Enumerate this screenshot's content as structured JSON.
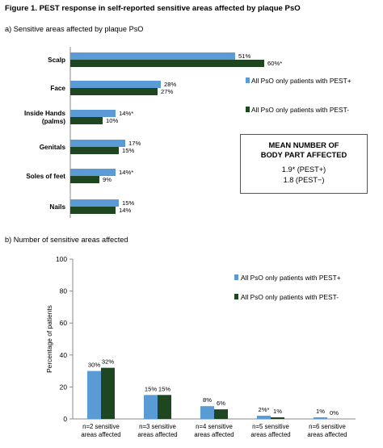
{
  "figure_title": "Figure 1. PEST response in self-reported sensitive areas affected by plaque PsO",
  "colors": {
    "pest_plus": "#5b9bd5",
    "pest_minus": "#1e4620"
  },
  "summary_box": {
    "title_line1": "MEAN NUMBER OF",
    "title_line2": "BODY PART AFFECTED",
    "line1": "1.9* (PEST+)",
    "line2": "1.8 (PEST−)"
  },
  "chart_data": [
    {
      "type": "bar",
      "orientation": "horizontal",
      "title": "a) Sensitive areas affected by plaque PsO",
      "categories": [
        "Scalp",
        "Face",
        "Inside Hands\n(palms)",
        "Genitals",
        "Soles of feet",
        "Nails"
      ],
      "series": [
        {
          "name": "All PsO only patients with PEST+",
          "values": [
            51,
            28,
            14,
            17,
            14,
            15
          ],
          "labels": [
            "51%",
            "28%",
            "14%*",
            "17%",
            "14%*",
            "15%"
          ]
        },
        {
          "name": "All PsO only patients with PEST-",
          "values": [
            60,
            27,
            10,
            15,
            9,
            14
          ],
          "labels": [
            "60%*",
            "27%",
            "10%",
            "15%",
            "9%",
            "14%"
          ]
        }
      ],
      "xlim": [
        0,
        65
      ],
      "legend": "right"
    },
    {
      "type": "bar",
      "title": "b) Number of sensitive areas affected",
      "categories": [
        "n=2 sensitive\nareas affected",
        "n=3 sensitive\nareas affected",
        "n=4 sensitive\nareas affected",
        "n=5 sensitive\nareas affected",
        "n=6 sensitive\nareas affected"
      ],
      "series": [
        {
          "name": "All PsO only patients with PEST+",
          "values": [
            30,
            15,
            8,
            2,
            1
          ],
          "labels": [
            "30%",
            "15%",
            "8%",
            "2%*",
            "1%"
          ]
        },
        {
          "name": "All PsO only patients with PEST-",
          "values": [
            32,
            15,
            6,
            1,
            0
          ],
          "labels": [
            "32%",
            "15%",
            "6%",
            "1%",
            "0%"
          ]
        }
      ],
      "ylabel": "Percentage of patients",
      "ylim": [
        0,
        100
      ],
      "yticks": [
        0,
        20,
        40,
        60,
        80,
        100
      ],
      "legend": "top-right"
    }
  ]
}
